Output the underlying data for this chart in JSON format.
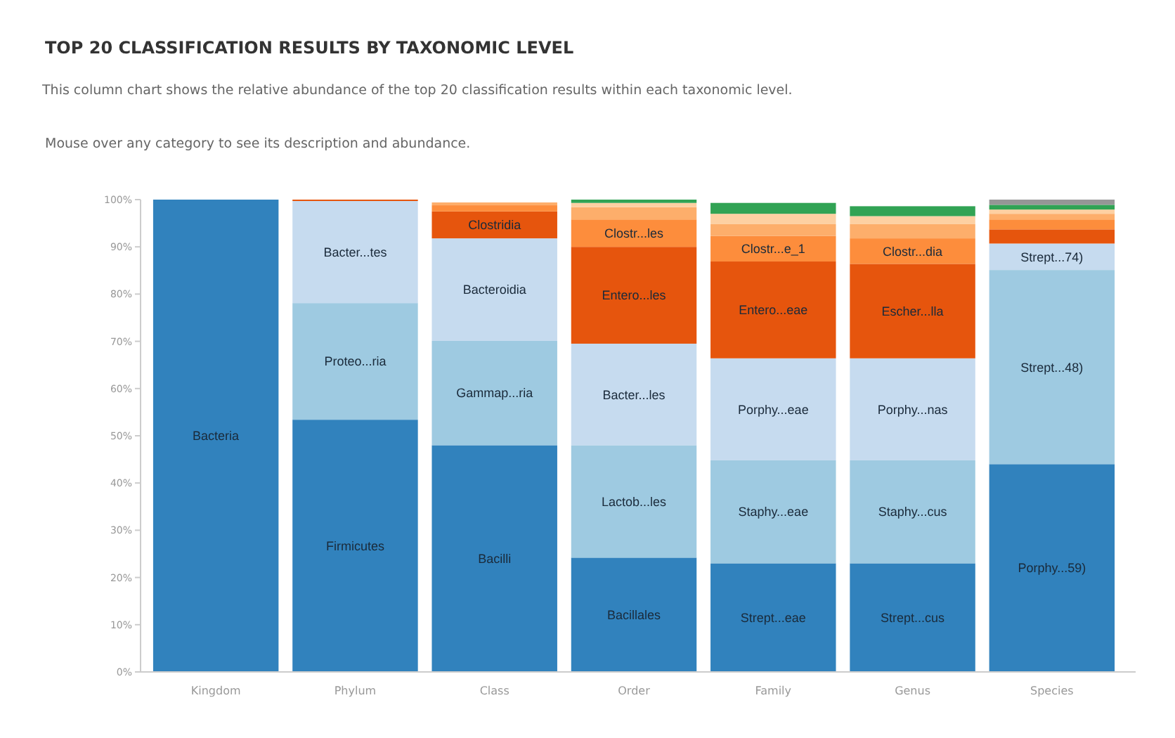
{
  "chart_data": {
    "type": "bar",
    "stacked": true,
    "title": "TOP 20 CLASSIFICATION RESULTS BY TAXONOMIC LEVEL",
    "subtitle": "This column chart shows the relative abundance of the top 20 classification results within each taxonomic level.",
    "annotations": [
      "Mouse over any category to see its description and abundance."
    ],
    "categories": [
      "Kingdom",
      "Phylum",
      "Class",
      "Order",
      "Family",
      "Genus",
      "Species"
    ],
    "ylim": [
      0,
      100
    ],
    "yticks": [
      {
        "value": 0,
        "label": "0%"
      },
      {
        "value": 10,
        "label": "10%"
      },
      {
        "value": 20,
        "label": "20%"
      },
      {
        "value": 30,
        "label": "30%"
      },
      {
        "value": 40,
        "label": "40%"
      },
      {
        "value": 50,
        "label": "50%"
      },
      {
        "value": 60,
        "label": "60%"
      },
      {
        "value": 70,
        "label": "70%"
      },
      {
        "value": 80,
        "label": "80%"
      },
      {
        "value": 90,
        "label": "90%"
      },
      {
        "value": 100,
        "label": "100%"
      }
    ],
    "grid": false,
    "legend": false,
    "series": [
      {
        "name": "Bacteria",
        "color": "#3182bd",
        "values": [
          100,
          null,
          null,
          null,
          null,
          null,
          null
        ]
      },
      {
        "name": "Firmicutes",
        "color": "#3182bd",
        "values": [
          null,
          53.4,
          null,
          null,
          null,
          null,
          null
        ]
      },
      {
        "name": "Proteo...ria",
        "color": "#9ecae1",
        "values": [
          null,
          24.7,
          null,
          null,
          null,
          null,
          null
        ]
      },
      {
        "name": "Bacter...tes",
        "color": "#c6dbef",
        "values": [
          null,
          21.6,
          null,
          null,
          null,
          null,
          null
        ]
      },
      {
        "color": "#e6550d",
        "values": [
          null,
          0.3,
          null,
          null,
          null,
          null,
          null
        ]
      },
      {
        "name": "Bacilli",
        "color": "#3182bd",
        "values": [
          null,
          null,
          48.0,
          null,
          null,
          null,
          null
        ]
      },
      {
        "name": "Gammap...ria",
        "color": "#9ecae1",
        "values": [
          null,
          null,
          22.1,
          null,
          null,
          null,
          null
        ]
      },
      {
        "name": "Bacteroidia",
        "color": "#c6dbef",
        "values": [
          null,
          null,
          21.7,
          null,
          null,
          null,
          null
        ]
      },
      {
        "name": "Clostridia",
        "color": "#e6550d",
        "values": [
          null,
          null,
          5.7,
          null,
          null,
          null,
          null
        ]
      },
      {
        "color": "#fd8d3c",
        "values": [
          null,
          null,
          1.3,
          null,
          null,
          null,
          null
        ]
      },
      {
        "color": "#fdae6b",
        "values": [
          null,
          null,
          0.6,
          null,
          null,
          null,
          null
        ]
      },
      {
        "name": "Bacillales",
        "color": "#3182bd",
        "values": [
          null,
          null,
          null,
          24.2,
          null,
          null,
          null
        ]
      },
      {
        "name": "Lactob...les",
        "color": "#9ecae1",
        "values": [
          null,
          null,
          null,
          23.8,
          null,
          null,
          null
        ]
      },
      {
        "name": "Bacter...les",
        "color": "#c6dbef",
        "values": [
          null,
          null,
          null,
          21.5,
          null,
          null,
          null
        ]
      },
      {
        "name": "Entero...les",
        "color": "#e6550d",
        "values": [
          null,
          null,
          null,
          20.5,
          null,
          null,
          null
        ]
      },
      {
        "name": "Clostr...les",
        "color": "#fd8d3c",
        "values": [
          null,
          null,
          null,
          5.8,
          null,
          null,
          null
        ]
      },
      {
        "color": "#fdae6b",
        "values": [
          null,
          null,
          null,
          2.6,
          null,
          null,
          null
        ]
      },
      {
        "color": "#fdd0a2",
        "values": [
          null,
          null,
          null,
          0.9,
          null,
          null,
          null
        ]
      },
      {
        "color": "#31a354",
        "values": [
          null,
          null,
          null,
          0.7,
          null,
          null,
          null
        ]
      },
      {
        "name": "Strept...eae",
        "color": "#3182bd",
        "values": [
          null,
          null,
          null,
          null,
          23.0,
          null,
          null
        ]
      },
      {
        "name": "Staphy...eae",
        "color": "#9ecae1",
        "values": [
          null,
          null,
          null,
          null,
          21.8,
          null,
          null
        ]
      },
      {
        "name": "Porphy...eae",
        "color": "#c6dbef",
        "values": [
          null,
          null,
          null,
          null,
          21.6,
          null,
          null
        ]
      },
      {
        "name": "Entero...eae",
        "color": "#e6550d",
        "values": [
          null,
          null,
          null,
          null,
          20.5,
          null,
          null
        ]
      },
      {
        "name": "Clostr...e_1",
        "color": "#fd8d3c",
        "values": [
          null,
          null,
          null,
          null,
          5.4,
          null,
          null
        ]
      },
      {
        "color": "#fdae6b",
        "values": [
          null,
          null,
          null,
          null,
          2.5,
          null,
          null
        ]
      },
      {
        "color": "#fdd0a2",
        "values": [
          null,
          null,
          null,
          null,
          2.2,
          null,
          null
        ]
      },
      {
        "color": "#31a354",
        "values": [
          null,
          null,
          null,
          null,
          2.3,
          null,
          null
        ]
      },
      {
        "name": "Strept...cus",
        "color": "#3182bd",
        "values": [
          null,
          null,
          null,
          null,
          null,
          23.0,
          null
        ]
      },
      {
        "name": "Staphy...cus",
        "color": "#9ecae1",
        "values": [
          null,
          null,
          null,
          null,
          null,
          21.8,
          null
        ]
      },
      {
        "name": "Porphy...nas",
        "color": "#c6dbef",
        "values": [
          null,
          null,
          null,
          null,
          null,
          21.6,
          null
        ]
      },
      {
        "name": "Escher...lla",
        "color": "#e6550d",
        "values": [
          null,
          null,
          null,
          null,
          null,
          20.0,
          null
        ]
      },
      {
        "name": "Clostr...dia",
        "color": "#fd8d3c",
        "values": [
          null,
          null,
          null,
          null,
          null,
          5.4,
          null
        ]
      },
      {
        "color": "#fdae6b",
        "values": [
          null,
          null,
          null,
          null,
          null,
          3.0,
          null
        ]
      },
      {
        "color": "#fdd0a2",
        "values": [
          null,
          null,
          null,
          null,
          null,
          1.7,
          null
        ]
      },
      {
        "color": "#31a354",
        "values": [
          null,
          null,
          null,
          null,
          null,
          2.1,
          null
        ]
      },
      {
        "name": "Porphy...59)",
        "color": "#3182bd",
        "values": [
          null,
          null,
          null,
          null,
          null,
          null,
          44.0
        ]
      },
      {
        "name": "Strept...48)",
        "color": "#9ecae1",
        "values": [
          null,
          null,
          null,
          null,
          null,
          null,
          41.1
        ]
      },
      {
        "name": "Strept...74)",
        "color": "#c6dbef",
        "values": [
          null,
          null,
          null,
          null,
          null,
          null,
          5.6
        ]
      },
      {
        "color": "#e6550d",
        "values": [
          null,
          null,
          null,
          null,
          null,
          null,
          3.0
        ]
      },
      {
        "color": "#fd8d3c",
        "values": [
          null,
          null,
          null,
          null,
          null,
          null,
          2.1
        ]
      },
      {
        "color": "#fdae6b",
        "values": [
          null,
          null,
          null,
          null,
          null,
          null,
          1.2
        ]
      },
      {
        "color": "#fdd0a2",
        "values": [
          null,
          null,
          null,
          null,
          null,
          null,
          0.9
        ]
      },
      {
        "color": "#31a354",
        "values": [
          null,
          null,
          null,
          null,
          null,
          null,
          1.0
        ]
      },
      {
        "color": "#969696",
        "values": [
          null,
          null,
          null,
          null,
          null,
          null,
          1.1
        ]
      }
    ]
  }
}
